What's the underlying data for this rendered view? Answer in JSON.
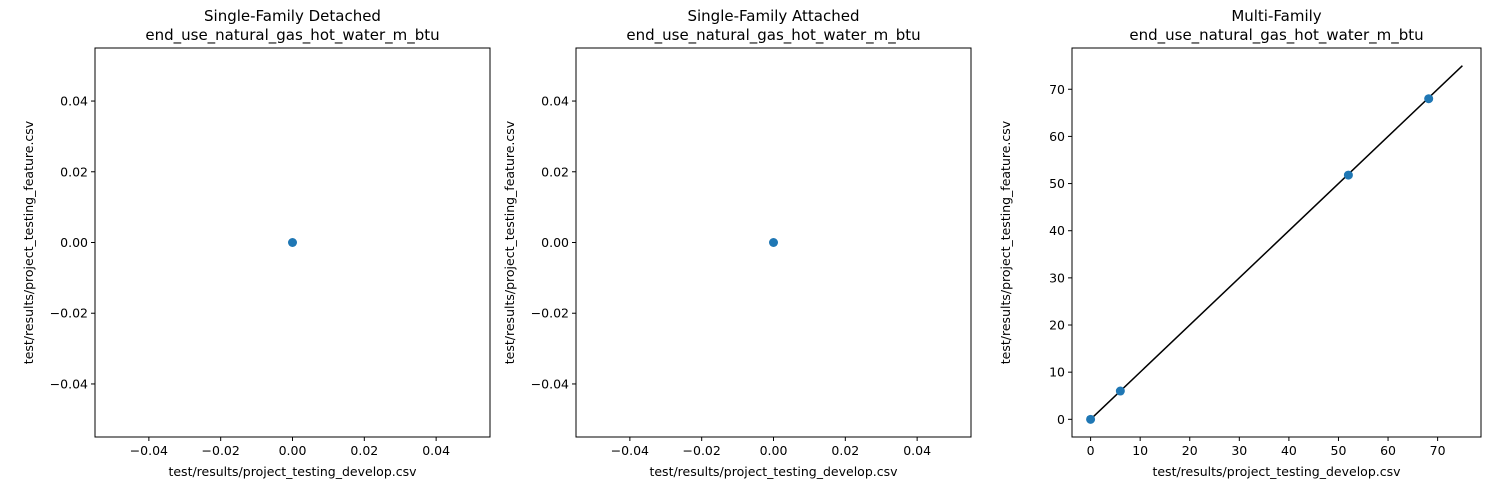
{
  "chart_data": [
    {
      "type": "scatter",
      "title": [
        "Single-Family Detached",
        "end_use_natural_gas_hot_water_m_btu"
      ],
      "xlabel": "test/results/project_testing_develop.csv",
      "ylabel": "test/results/project_testing_feature.csv",
      "xlim": [
        -0.055,
        0.055
      ],
      "ylim": [
        -0.055,
        0.055
      ],
      "xticks": [
        -0.04,
        -0.02,
        0.0,
        0.02,
        0.04
      ],
      "xtick_labels": [
        "−0.04",
        "−0.02",
        "0.00",
        "0.02",
        "0.04"
      ],
      "yticks": [
        -0.04,
        -0.02,
        0.0,
        0.02,
        0.04
      ],
      "ytick_labels": [
        "−0.04",
        "−0.02",
        "0.00",
        "0.02",
        "0.04"
      ],
      "points": [
        {
          "x": 0,
          "y": 0
        }
      ],
      "marker_color": "#1f77b4",
      "grid": false
    },
    {
      "type": "scatter",
      "title": [
        "Single-Family Attached",
        "end_use_natural_gas_hot_water_m_btu"
      ],
      "xlabel": "test/results/project_testing_develop.csv",
      "ylabel": "test/results/project_testing_feature.csv",
      "xlim": [
        -0.055,
        0.055
      ],
      "ylim": [
        -0.055,
        0.055
      ],
      "xticks": [
        -0.04,
        -0.02,
        0.0,
        0.02,
        0.04
      ],
      "xtick_labels": [
        "−0.04",
        "−0.02",
        "0.00",
        "0.02",
        "0.04"
      ],
      "yticks": [
        -0.04,
        -0.02,
        0.0,
        0.02,
        0.04
      ],
      "ytick_labels": [
        "−0.04",
        "−0.02",
        "0.00",
        "0.02",
        "0.04"
      ],
      "points": [
        {
          "x": 0,
          "y": 0
        }
      ],
      "marker_color": "#1f77b4",
      "grid": false
    },
    {
      "type": "scatter",
      "title": [
        "Multi-Family",
        "end_use_natural_gas_hot_water_m_btu"
      ],
      "xlabel": "test/results/project_testing_develop.csv",
      "ylabel": "test/results/project_testing_feature.csv",
      "xlim": [
        -3.75,
        78.75
      ],
      "ylim": [
        -3.75,
        78.75
      ],
      "xticks": [
        0,
        10,
        20,
        30,
        40,
        50,
        60,
        70
      ],
      "xtick_labels": [
        "0",
        "10",
        "20",
        "30",
        "40",
        "50",
        "60",
        "70"
      ],
      "yticks": [
        0,
        10,
        20,
        30,
        40,
        50,
        60,
        70
      ],
      "ytick_labels": [
        "0",
        "10",
        "20",
        "30",
        "40",
        "50",
        "60",
        "70"
      ],
      "points": [
        {
          "x": 0,
          "y": 0
        },
        {
          "x": 6,
          "y": 6
        },
        {
          "x": 52,
          "y": 51.8
        },
        {
          "x": 68.2,
          "y": 68
        }
      ],
      "reference_line": {
        "x": [
          0,
          75
        ],
        "y": [
          0,
          75
        ],
        "color": "#000000"
      },
      "marker_color": "#1f77b4",
      "grid": false
    }
  ]
}
